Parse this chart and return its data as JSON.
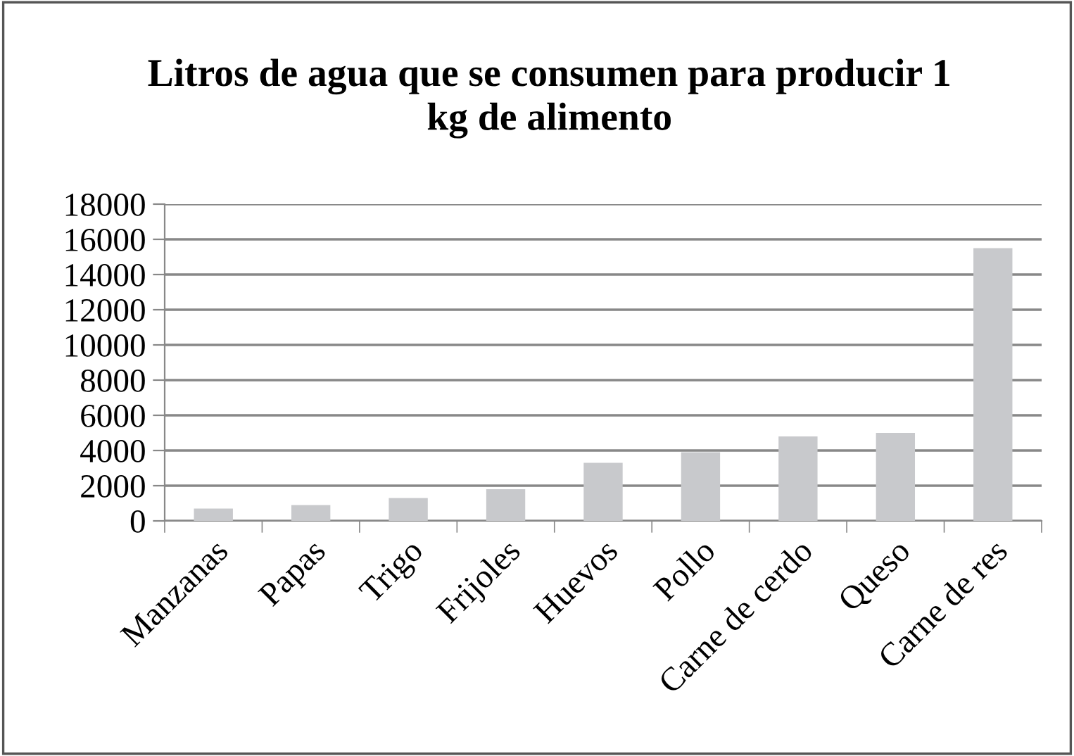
{
  "chart_data": {
    "type": "bar",
    "title": "Litros de agua que se consumen para producir 1\nkg de alimento",
    "categories": [
      "Manzanas",
      "Papas",
      "Trigo",
      "Frijoles",
      "Huevos",
      "Pollo",
      "Carne de cerdo",
      "Queso",
      "Carne de res"
    ],
    "values": [
      700,
      900,
      1300,
      1800,
      3300,
      3900,
      4800,
      5000,
      15500
    ],
    "color": "#c8c9cc",
    "ylim": [
      0,
      18000
    ],
    "yticks": [
      0,
      2000,
      4000,
      6000,
      8000,
      10000,
      12000,
      14000,
      16000,
      18000
    ],
    "grid": "y",
    "legend": false
  }
}
